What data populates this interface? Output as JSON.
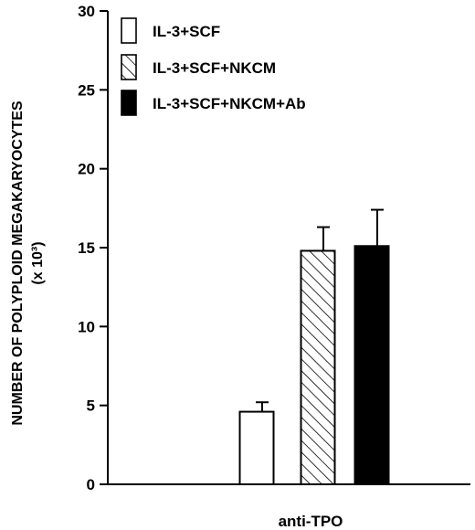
{
  "chart_data": {
    "type": "bar",
    "categories": [
      "anti-TPO"
    ],
    "series": [
      {
        "name": "IL-3+SCF",
        "values": [
          4.6
        ],
        "error": [
          0.6
        ],
        "fill": "open"
      },
      {
        "name": "IL-3+SCF+NKCM",
        "values": [
          14.8
        ],
        "error": [
          1.5
        ],
        "fill": "hatched"
      },
      {
        "name": "IL-3+SCF+NKCM+Ab",
        "values": [
          15.1
        ],
        "error": [
          2.3
        ],
        "fill": "solid"
      }
    ],
    "ylabel_line1": "NUMBER OF POLYPLOID MEGAKARYOCYTES",
    "ylabel_line2": "(x 10³)",
    "ylim": [
      0,
      30
    ],
    "yticks": [
      0,
      5,
      10,
      15,
      20,
      25,
      30
    ],
    "grid": false,
    "legend": "top-left"
  }
}
